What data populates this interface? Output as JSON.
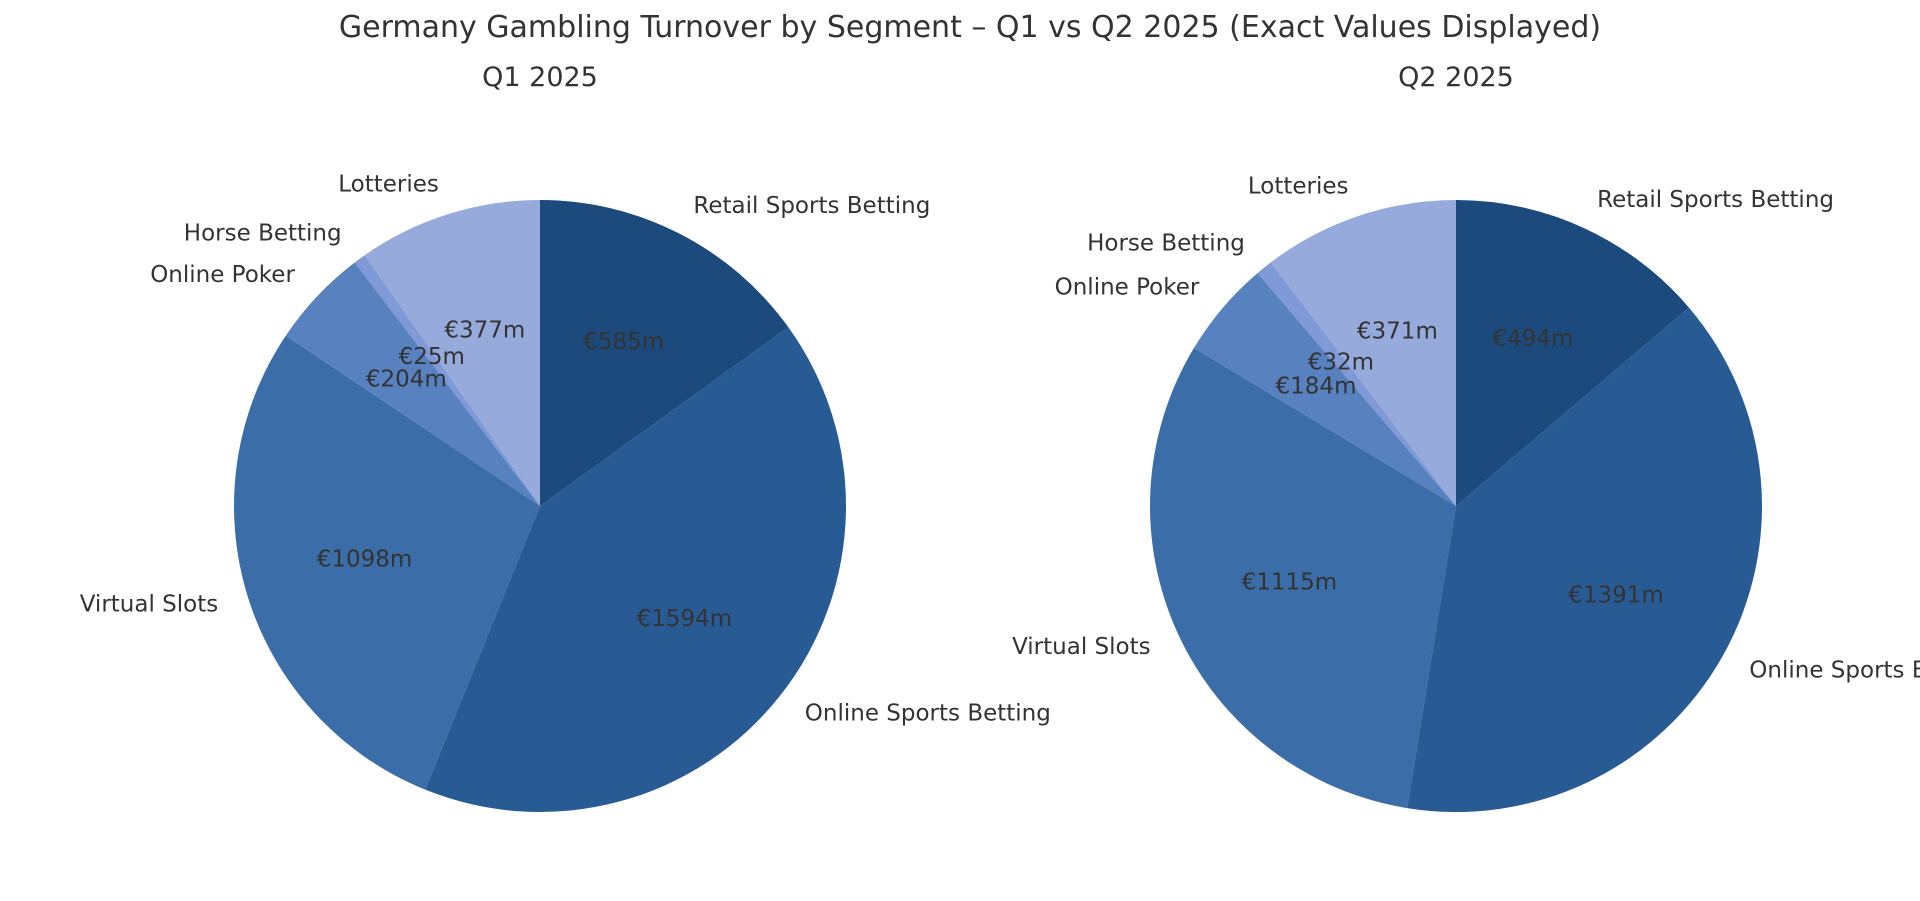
{
  "chart_data": [
    {
      "type": "pie",
      "title": "Germany Gambling Turnover by Segment – Q1 vs Q2 2025 (Exact Values Displayed)",
      "subtitle": "Q1 2025",
      "start_angle": "top, counter-clockwise",
      "slices": [
        {
          "label": "Lotteries",
          "value": 377,
          "value_text": "€377m",
          "color": "#96aadb"
        },
        {
          "label": "Horse Betting",
          "value": 25,
          "value_text": "€25m",
          "color": "#7f9ad6"
        },
        {
          "label": "Online Poker",
          "value": 204,
          "value_text": "€204m",
          "color": "#5781bf"
        },
        {
          "label": "Virtual Slots",
          "value": 1098,
          "value_text": "€1098m",
          "color": "#3b6ea8"
        },
        {
          "label": "Online Sports Betting",
          "value": 1594,
          "value_text": "€1594m",
          "color": "#285b94"
        },
        {
          "label": "Retail Sports Betting",
          "value": 585,
          "value_text": "€585m",
          "color": "#1c4a7c"
        }
      ]
    },
    {
      "type": "pie",
      "subtitle": "Q2 2025",
      "start_angle": "top, counter-clockwise",
      "slices": [
        {
          "label": "Lotteries",
          "value": 371,
          "value_text": "€371m",
          "color": "#96aadb"
        },
        {
          "label": "Horse Betting",
          "value": 32,
          "value_text": "€32m",
          "color": "#7f9ad6"
        },
        {
          "label": "Online Poker",
          "value": 184,
          "value_text": "€184m",
          "color": "#5781bf"
        },
        {
          "label": "Virtual Slots",
          "value": 1115,
          "value_text": "€1115m",
          "color": "#3b6ea8"
        },
        {
          "label": "Online Sports Betting",
          "value": 1391,
          "value_text": "€1391m",
          "color": "#285b94"
        },
        {
          "label": "Retail Sports Betting",
          "value": 494,
          "value_text": "€494m",
          "color": "#1c4a7c"
        }
      ]
    }
  ]
}
